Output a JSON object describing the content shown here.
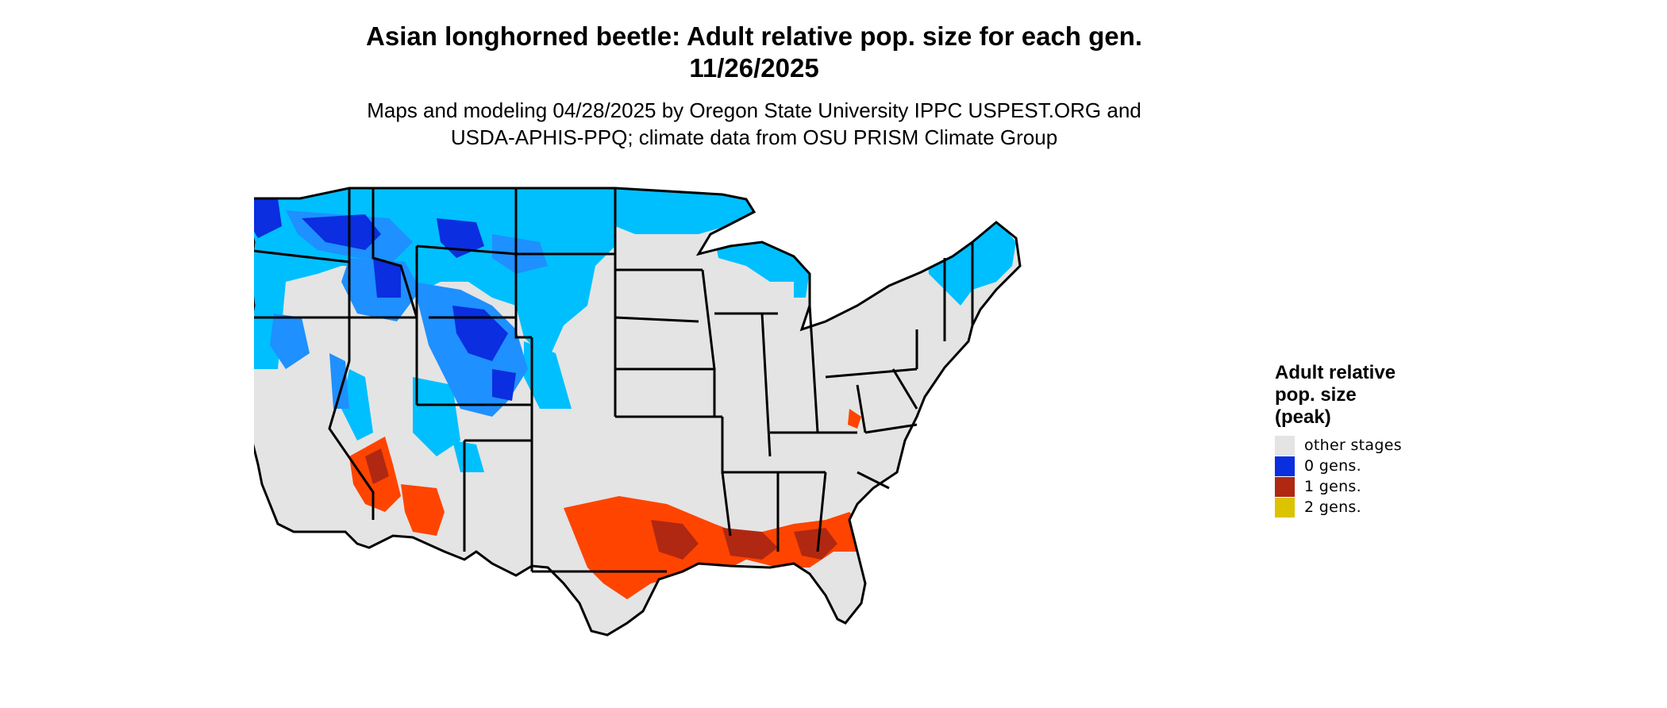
{
  "title_lines": [
    "Asian longhorned beetle: Adult relative pop. size for each gen.",
    "11/26/2025"
  ],
  "subtitle_lines": [
    "Maps and modeling 04/28/2025 by Oregon State University IPPC USPEST.ORG and",
    "USDA-APHIS-PPQ; climate data from OSU PRISM Climate Group"
  ],
  "legend": {
    "title_lines": [
      "Adult relative",
      "pop. size",
      "(peak)"
    ],
    "items": [
      {
        "label": "other stages",
        "color": "#e4e4e4"
      },
      {
        "label": "0 gens.",
        "color": "#0a2ee0"
      },
      {
        "label": "1 gens.",
        "color": "#b02812"
      },
      {
        "label": "2 gens.",
        "color": "#dcc300"
      }
    ]
  },
  "map": {
    "land_color": "#e4e4e4",
    "boundary_color": "#000000",
    "zone_colors": {
      "cold_light": "#00bfff",
      "cold_mid": "#1e90ff",
      "cold_dark": "#0a2ee0",
      "warm_light": "#ff4400",
      "warm_dark": "#b02812"
    }
  }
}
